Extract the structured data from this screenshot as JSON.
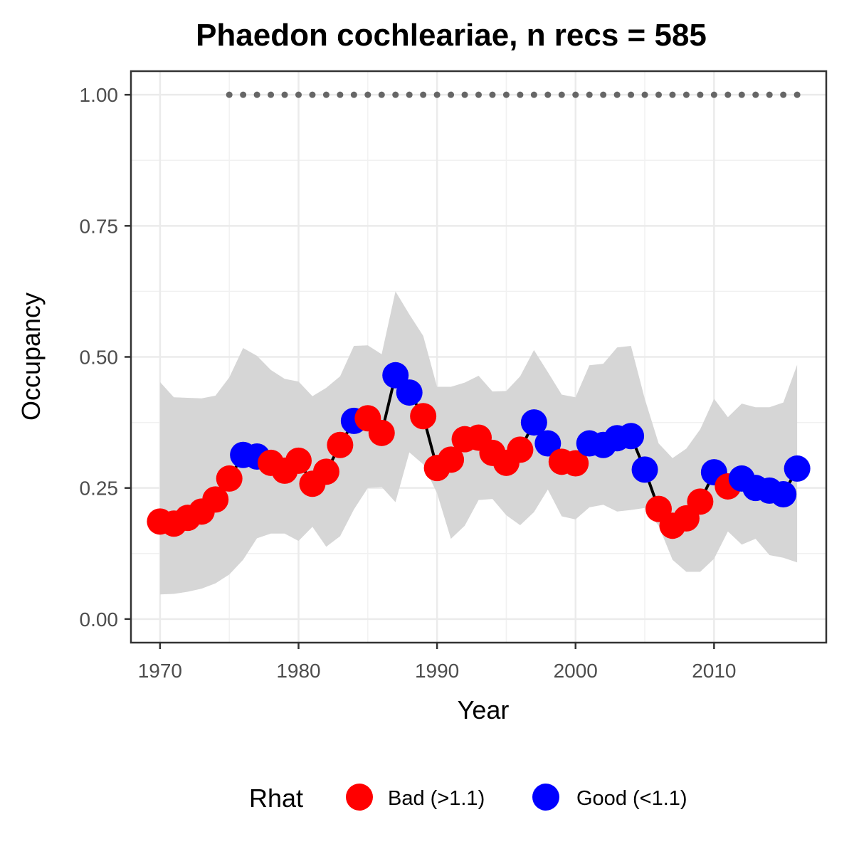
{
  "chart_data": {
    "type": "line",
    "title": "Phaedon cochleariae, n recs = 585",
    "xlabel": "Year",
    "ylabel": "Occupancy",
    "xlim": [
      1967.9,
      2018.1
    ],
    "ylim": [
      -0.045,
      1.045
    ],
    "x_ticks": [
      "1970",
      "1980",
      "1990",
      "2000",
      "2010"
    ],
    "y_ticks": [
      "0.00",
      "0.25",
      "0.50",
      "0.75",
      "1.00"
    ],
    "grid": true,
    "legend": {
      "title": "Rhat",
      "position": "bottom",
      "entries": [
        {
          "label": "Bad (>1.1)",
          "color": "#ff0000"
        },
        {
          "label": "Good (<1.1)",
          "color": "#0000ff"
        }
      ]
    },
    "colors": {
      "bad": "#ff0000",
      "good": "#0000ff",
      "line": "#000000",
      "ribbon": "#d6d6d6",
      "record_dots": "#666666"
    },
    "series": [
      {
        "x": [
          1970,
          1971,
          1972,
          1973,
          1974,
          1975,
          1976,
          1977,
          1978,
          1979,
          1980,
          1981,
          1982,
          1983,
          1984,
          1985,
          1986,
          1987,
          1988,
          1989,
          1990,
          1991,
          1992,
          1993,
          1994,
          1995,
          1996,
          1997,
          1998,
          1999,
          2000,
          2001,
          2002,
          2003,
          2004,
          2005,
          2006,
          2007,
          2008,
          2009,
          2010,
          2011,
          2012,
          2013,
          2014,
          2015,
          2016
        ],
        "y": [
          0.186,
          0.182,
          0.193,
          0.205,
          0.228,
          0.268,
          0.313,
          0.31,
          0.298,
          0.283,
          0.302,
          0.258,
          0.281,
          0.332,
          0.378,
          0.383,
          0.355,
          0.465,
          0.432,
          0.387,
          0.288,
          0.304,
          0.343,
          0.346,
          0.317,
          0.298,
          0.323,
          0.375,
          0.335,
          0.3,
          0.297,
          0.335,
          0.332,
          0.345,
          0.349,
          0.285,
          0.21,
          0.178,
          0.192,
          0.224,
          0.28,
          0.253,
          0.268,
          0.25,
          0.245,
          0.238,
          0.287
        ],
        "rhat": [
          "Bad (>1.1)",
          "Bad (>1.1)",
          "Bad (>1.1)",
          "Bad (>1.1)",
          "Bad (>1.1)",
          "Bad (>1.1)",
          "Good (<1.1)",
          "Good (<1.1)",
          "Bad (>1.1)",
          "Bad (>1.1)",
          "Bad (>1.1)",
          "Bad (>1.1)",
          "Bad (>1.1)",
          "Bad (>1.1)",
          "Good (<1.1)",
          "Bad (>1.1)",
          "Bad (>1.1)",
          "Good (<1.1)",
          "Good (<1.1)",
          "Bad (>1.1)",
          "Bad (>1.1)",
          "Bad (>1.1)",
          "Bad (>1.1)",
          "Bad (>1.1)",
          "Bad (>1.1)",
          "Bad (>1.1)",
          "Bad (>1.1)",
          "Good (<1.1)",
          "Good (<1.1)",
          "Bad (>1.1)",
          "Bad (>1.1)",
          "Good (<1.1)",
          "Good (<1.1)",
          "Good (<1.1)",
          "Good (<1.1)",
          "Good (<1.1)",
          "Bad (>1.1)",
          "Bad (>1.1)",
          "Bad (>1.1)",
          "Bad (>1.1)",
          "Good (<1.1)",
          "Bad (>1.1)",
          "Good (<1.1)",
          "Good (<1.1)",
          "Good (<1.1)",
          "Good (<1.1)",
          "Good (<1.1)"
        ],
        "lower": [
          0.047,
          0.048,
          0.052,
          0.058,
          0.068,
          0.085,
          0.113,
          0.154,
          0.163,
          0.163,
          0.149,
          0.176,
          0.138,
          0.158,
          0.209,
          0.25,
          0.252,
          0.223,
          0.318,
          0.295,
          0.24,
          0.153,
          0.178,
          0.227,
          0.229,
          0.198,
          0.179,
          0.204,
          0.247,
          0.196,
          0.19,
          0.213,
          0.218,
          0.205,
          0.208,
          0.212,
          0.178,
          0.113,
          0.09,
          0.09,
          0.115,
          0.167,
          0.142,
          0.153,
          0.122,
          0.117,
          0.108
        ],
        "upper": [
          0.452,
          0.423,
          0.422,
          0.421,
          0.426,
          0.461,
          0.517,
          0.502,
          0.475,
          0.458,
          0.453,
          0.425,
          0.441,
          0.463,
          0.521,
          0.522,
          0.505,
          0.625,
          0.581,
          0.54,
          0.443,
          0.443,
          0.451,
          0.464,
          0.434,
          0.435,
          0.463,
          0.513,
          0.471,
          0.428,
          0.423,
          0.484,
          0.487,
          0.518,
          0.521,
          0.42,
          0.335,
          0.307,
          0.325,
          0.362,
          0.42,
          0.385,
          0.411,
          0.404,
          0.404,
          0.413,
          0.485
        ]
      }
    ],
    "records": {
      "x": [
        1975,
        1976,
        1977,
        1978,
        1979,
        1980,
        1981,
        1982,
        1983,
        1984,
        1985,
        1986,
        1987,
        1988,
        1989,
        1990,
        1991,
        1992,
        1993,
        1994,
        1995,
        1996,
        1997,
        1998,
        1999,
        2000,
        2001,
        2002,
        2003,
        2004,
        2005,
        2006,
        2007,
        2008,
        2009,
        2010,
        2011,
        2012,
        2013,
        2014,
        2015,
        2016
      ],
      "y": 1.0
    }
  }
}
